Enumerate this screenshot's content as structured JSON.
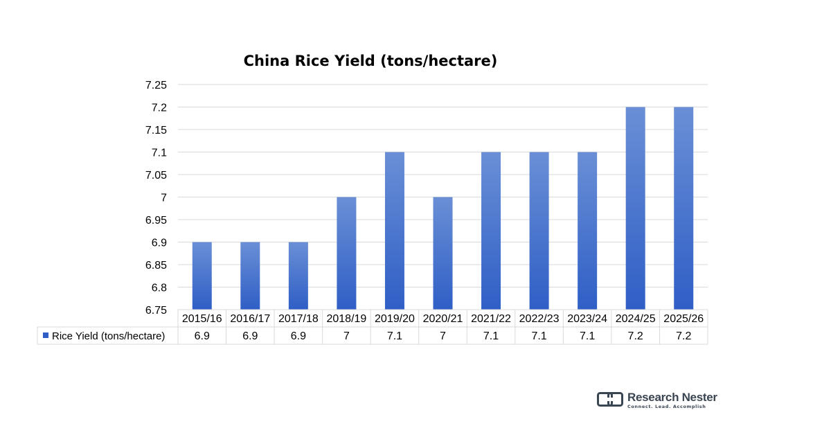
{
  "chart_data": {
    "type": "bar",
    "title": "China Rice Yield (tons/hectare)",
    "categories": [
      "2015/16",
      "2016/17",
      "2017/18",
      "2018/19",
      "2019/20",
      "2020/21",
      "2021/22",
      "2022/23",
      "2023/24",
      "2024/25",
      "2025/26"
    ],
    "series": [
      {
        "name": "Rice Yield (tons/hectare)",
        "values": [
          6.9,
          6.9,
          6.9,
          7,
          7.1,
          7,
          7.1,
          7.1,
          7.1,
          7.2,
          7.2
        ],
        "value_labels": [
          "6.9",
          "6.9",
          "6.9",
          "7",
          "7.1",
          "7",
          "7.1",
          "7.1",
          "7.1",
          "7.2",
          "7.2"
        ]
      }
    ],
    "ylim": [
      6.75,
      7.25
    ],
    "yticks": [
      "6.75",
      "6.8",
      "6.85",
      "6.9",
      "6.95",
      "7",
      "7.05",
      "7.1",
      "7.15",
      "7.2",
      "7.25"
    ],
    "grid": true,
    "legend": "data-table",
    "colors": {
      "bar_light": "#6a8fd6",
      "bar_dark": "#2f5fc6",
      "grid": "#d9d9d9"
    }
  },
  "branding": {
    "name": "Research Nester",
    "tagline": "Connect. Lead. Accomplish",
    "colors": {
      "dark": "#3a4552"
    }
  }
}
